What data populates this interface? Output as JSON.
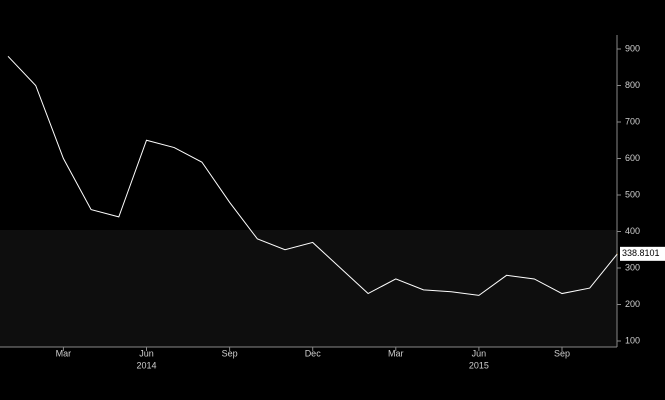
{
  "chart_data": {
    "type": "line",
    "x": [
      "2014-01",
      "2014-02",
      "2014-03",
      "2014-04",
      "2014-05",
      "2014-06",
      "2014-07",
      "2014-08",
      "2014-09",
      "2014-10",
      "2014-11",
      "2014-12",
      "2015-01",
      "2015-02",
      "2015-03",
      "2015-04",
      "2015-05",
      "2015-06",
      "2015-07",
      "2015-08",
      "2015-09",
      "2015-10",
      "2015-11"
    ],
    "series": [
      {
        "color": "#ffffff",
        "values": [
          880,
          800,
          600,
          460,
          440,
          650,
          630,
          590,
          480,
          380,
          350,
          370,
          300,
          230,
          270,
          240,
          235,
          225,
          280,
          270,
          230,
          245,
          338.8101
        ],
        "value_labels": [
          null,
          null,
          null,
          null,
          null,
          null,
          null,
          null,
          null,
          null,
          null,
          null,
          null,
          null,
          null,
          null,
          null,
          null,
          null,
          null,
          null,
          null,
          "338.8101"
        ]
      }
    ],
    "xticks": [
      {
        "value": "2014-03",
        "label": "Mar"
      },
      {
        "value": "2014-06",
        "label": "Jun"
      },
      {
        "value": "2014-09",
        "label": "Sep"
      },
      {
        "value": "2014-12",
        "label": "Dec"
      },
      {
        "value": "2015-03",
        "label": "Mar"
      },
      {
        "value": "2015-06",
        "label": "Jun"
      },
      {
        "value": "2015-09",
        "label": "Sep"
      }
    ],
    "year_labels": [
      {
        "value": "2014-06",
        "label": "2014"
      },
      {
        "value": "2015-06",
        "label": "2015"
      }
    ],
    "ylim": [
      80,
      930
    ],
    "yticks": [
      100,
      200,
      300,
      400,
      500,
      600,
      700,
      800,
      900
    ]
  }
}
